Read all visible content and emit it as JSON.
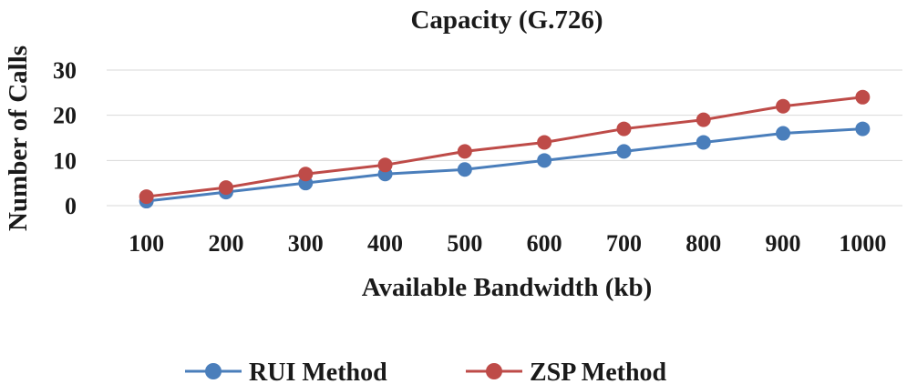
{
  "chart_data": {
    "type": "line",
    "title": "Capacity (G.726)",
    "xlabel": "Available Bandwidth (kb)",
    "ylabel": "Number of Calls",
    "categories": [
      "100",
      "200",
      "300",
      "400",
      "500",
      "600",
      "700",
      "800",
      "900",
      "1000"
    ],
    "yticks": [
      "0",
      "10",
      "20",
      "30"
    ],
    "ylim": [
      0,
      30
    ],
    "grid": true,
    "legend_position": "bottom",
    "series": [
      {
        "name": "RUI Method",
        "color": "#4a7ebb",
        "values": [
          1,
          3,
          5,
          7,
          8,
          10,
          12,
          14,
          16,
          17
        ]
      },
      {
        "name": "ZSP Method",
        "color": "#be4b48",
        "values": [
          2,
          4,
          7,
          9,
          12,
          14,
          17,
          19,
          22,
          24
        ]
      }
    ]
  }
}
